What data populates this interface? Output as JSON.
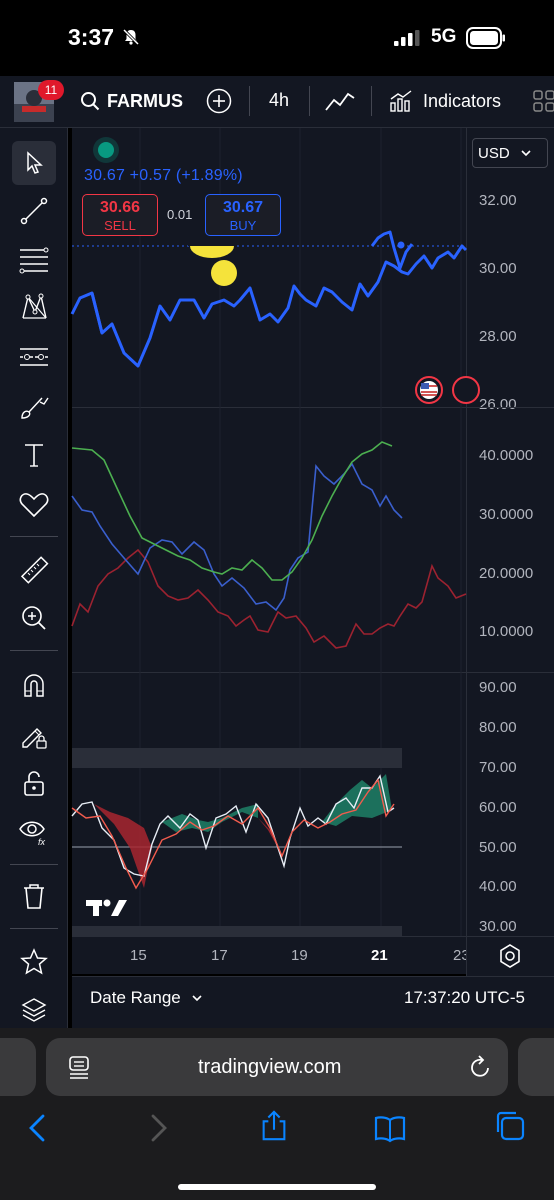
{
  "status_bar": {
    "time": "3:37",
    "network": "5G"
  },
  "toolbar": {
    "notification_count": "11",
    "symbol": "FARMUS",
    "interval": "4h",
    "indicators_label": "Indicators"
  },
  "price_pane": {
    "currency": "USD",
    "quote": "30.67 +0.57 (+1.89%)",
    "sell_price": "30.66",
    "sell_label": "SELL",
    "spread": "0.01",
    "buy_price": "30.67",
    "buy_label": "BUY",
    "axis_ticks": [
      "32.00",
      "30.00",
      "28.00",
      "26.00"
    ]
  },
  "indicator_pane_1": {
    "axis_ticks": [
      "40.0000",
      "30.0000",
      "20.0000",
      "10.0000"
    ]
  },
  "indicator_pane_2": {
    "axis_ticks": [
      "90.00",
      "80.00",
      "70.00",
      "60.00",
      "50.00",
      "40.00",
      "30.00"
    ]
  },
  "time_axis": {
    "ticks": [
      "15",
      "17",
      "19",
      "21",
      "23"
    ]
  },
  "bottom_bar": {
    "date_range_label": "Date Range",
    "clock": "17:37:20 UTC-5"
  },
  "browser": {
    "url": "tradingview.com"
  },
  "colors": {
    "price_line": "#2962ff",
    "sell": "#f23645",
    "buy": "#2962ff",
    "dmi_plus": "#3a5fcd",
    "dmi_minus": "#9c2230",
    "adx": "#4caf50",
    "stoch_rsi_bull_fill": "#1e7a63",
    "stoch_rsi_bear_fill": "#a8262f"
  }
}
